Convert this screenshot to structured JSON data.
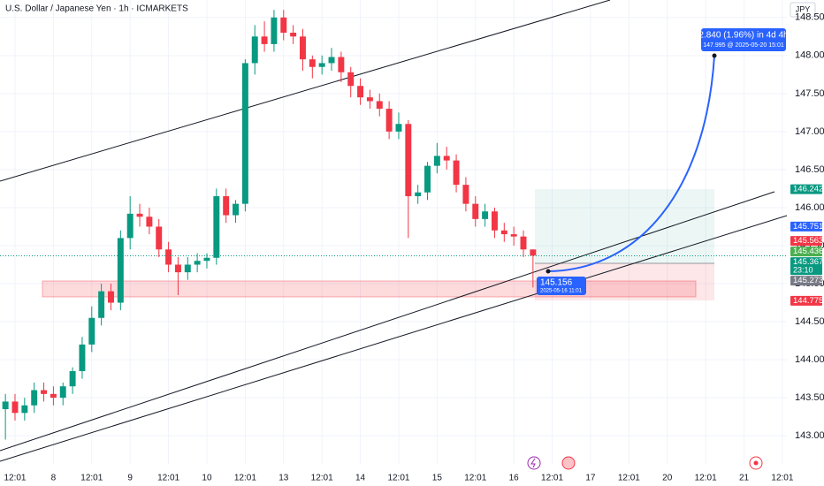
{
  "chart_data": {
    "type": "candlestick",
    "title": "U.S. Dollar / Japanese Yen · 1h · ICMARKETS",
    "currency": "JPY",
    "up_color": "#089981",
    "down_color": "#f23645",
    "x": [
      -3,
      0,
      3,
      6,
      9,
      12,
      15,
      18,
      21,
      24,
      27,
      30,
      33,
      36,
      39,
      42,
      45,
      48,
      51,
      54,
      57,
      60,
      63,
      66,
      69,
      72,
      75,
      78,
      81,
      84,
      87,
      90,
      93,
      96,
      99,
      102,
      105,
      108,
      111,
      114,
      117,
      120,
      123,
      126,
      129,
      132,
      135,
      138,
      141,
      144,
      147,
      150,
      153,
      156,
      159,
      162
    ],
    "open": [
      143.35,
      143.45,
      143.3,
      143.4,
      143.6,
      143.55,
      143.5,
      143.65,
      143.85,
      144.2,
      144.55,
      144.9,
      144.75,
      145.6,
      145.92,
      145.88,
      145.75,
      145.45,
      145.25,
      145.15,
      145.25,
      145.3,
      145.34,
      146.15,
      145.9,
      146.05,
      147.9,
      148.25,
      148.15,
      148.5,
      148.3,
      148.25,
      147.95,
      147.85,
      147.9,
      147.98,
      147.78,
      147.6,
      147.45,
      147.4,
      147.3,
      147.0,
      147.1,
      146.15,
      146.2,
      146.55,
      146.68,
      146.62,
      146.3,
      146.05,
      145.85,
      145.95,
      145.7,
      145.65,
      145.62,
      145.45
    ],
    "high": [
      143.55,
      143.55,
      143.5,
      143.7,
      143.7,
      143.65,
      143.7,
      143.9,
      144.3,
      144.7,
      145.0,
      145.0,
      145.7,
      146.15,
      146.05,
      146.0,
      145.85,
      145.55,
      145.35,
      145.35,
      145.4,
      145.4,
      146.25,
      146.25,
      146.1,
      147.95,
      148.4,
      148.45,
      148.6,
      148.6,
      148.4,
      148.35,
      148.0,
      148.0,
      148.1,
      148.05,
      147.85,
      147.7,
      147.55,
      147.5,
      147.4,
      147.25,
      147.15,
      146.3,
      146.6,
      146.85,
      146.8,
      146.7,
      146.4,
      146.15,
      146.05,
      146.0,
      145.8,
      145.75,
      145.7,
      145.45
    ],
    "low": [
      142.95,
      143.2,
      143.2,
      143.3,
      143.45,
      143.4,
      143.4,
      143.55,
      143.75,
      144.1,
      144.45,
      144.65,
      144.65,
      145.45,
      145.75,
      145.65,
      145.35,
      145.15,
      144.85,
      145.05,
      145.15,
      145.2,
      145.25,
      145.8,
      145.8,
      145.95,
      147.75,
      148.05,
      148.05,
      148.2,
      148.15,
      147.8,
      147.7,
      147.75,
      147.8,
      147.65,
      147.45,
      147.35,
      147.3,
      147.2,
      146.9,
      146.9,
      145.6,
      146.05,
      146.1,
      146.45,
      146.5,
      146.2,
      145.95,
      145.75,
      145.75,
      145.6,
      145.55,
      145.5,
      145.35,
      144.95
    ],
    "close": [
      143.45,
      143.3,
      143.4,
      143.6,
      143.55,
      143.5,
      143.65,
      143.85,
      144.2,
      144.55,
      144.9,
      144.75,
      145.6,
      145.92,
      145.88,
      145.75,
      145.45,
      145.25,
      145.15,
      145.25,
      145.3,
      145.34,
      146.15,
      145.9,
      146.05,
      147.9,
      148.25,
      148.15,
      148.5,
      148.3,
      148.25,
      147.95,
      147.85,
      147.9,
      147.98,
      147.78,
      147.6,
      147.45,
      147.4,
      147.3,
      147.0,
      147.1,
      146.15,
      146.2,
      146.55,
      146.68,
      146.62,
      146.3,
      146.05,
      145.85,
      145.95,
      145.7,
      145.65,
      145.62,
      145.45,
      145.37
    ],
    "xlim": [
      -4.7,
      241.4
    ],
    "xticks": [
      {
        "value": 0,
        "label": "12:01"
      },
      {
        "value": 12,
        "label": "8"
      },
      {
        "value": 24,
        "label": "12:01"
      },
      {
        "value": 36,
        "label": "9"
      },
      {
        "value": 48,
        "label": "12:01"
      },
      {
        "value": 60,
        "label": "10"
      },
      {
        "value": 72,
        "label": "12:01"
      },
      {
        "value": 84,
        "label": "13"
      },
      {
        "value": 96,
        "label": "12:01"
      },
      {
        "value": 108,
        "label": "14"
      },
      {
        "value": 120,
        "label": "12:01"
      },
      {
        "value": 132,
        "label": "15"
      },
      {
        "value": 144,
        "label": "12:01"
      },
      {
        "value": 156,
        "label": "16"
      },
      {
        "value": 168,
        "label": "12:01"
      },
      {
        "value": 180,
        "label": "17"
      },
      {
        "value": 192,
        "label": "12:01"
      },
      {
        "value": 204,
        "label": "20"
      },
      {
        "value": 216,
        "label": "12:01"
      },
      {
        "value": 228,
        "label": "21"
      },
      {
        "value": 240,
        "label": "12:01"
      }
    ],
    "ylim": [
      142.63,
      148.73
    ],
    "yticks": [
      {
        "value": 143,
        "label": "143.000"
      },
      {
        "value": 143.5,
        "label": "143.500"
      },
      {
        "value": 144,
        "label": "144.000"
      },
      {
        "value": 144.5,
        "label": "144.500"
      },
      {
        "value": 145,
        "label": "145.000"
      },
      {
        "value": 145.5,
        "label": "145.500"
      },
      {
        "value": 146,
        "label": "146.000"
      },
      {
        "value": 146.5,
        "label": "146.500"
      },
      {
        "value": 147,
        "label": "147.000"
      },
      {
        "value": 147.5,
        "label": "147.500"
      },
      {
        "value": 148,
        "label": "148.000"
      },
      {
        "value": 148.5,
        "label": "148.500"
      }
    ],
    "price_markers": [
      {
        "value": 146.242,
        "color": "#089981"
      },
      {
        "value": 145.751,
        "color": "#2962ff"
      },
      {
        "value": 145.563,
        "color": "#f23645"
      },
      {
        "value": 145.436,
        "color": "#4caf50"
      },
      {
        "value": 145.367,
        "color": "#089981",
        "countdown": "23:10"
      },
      {
        "value": 145.273,
        "color": "#787b86"
      },
      {
        "value": 144.775,
        "color": "#f23645"
      }
    ],
    "entry": {
      "price": 145.156,
      "time": "2025-05-16 11:01"
    },
    "target": {
      "change": "2.840 (1.96%) in 4d 4h",
      "detail": "147.995 @ 2025-05-20  15:01"
    }
  }
}
